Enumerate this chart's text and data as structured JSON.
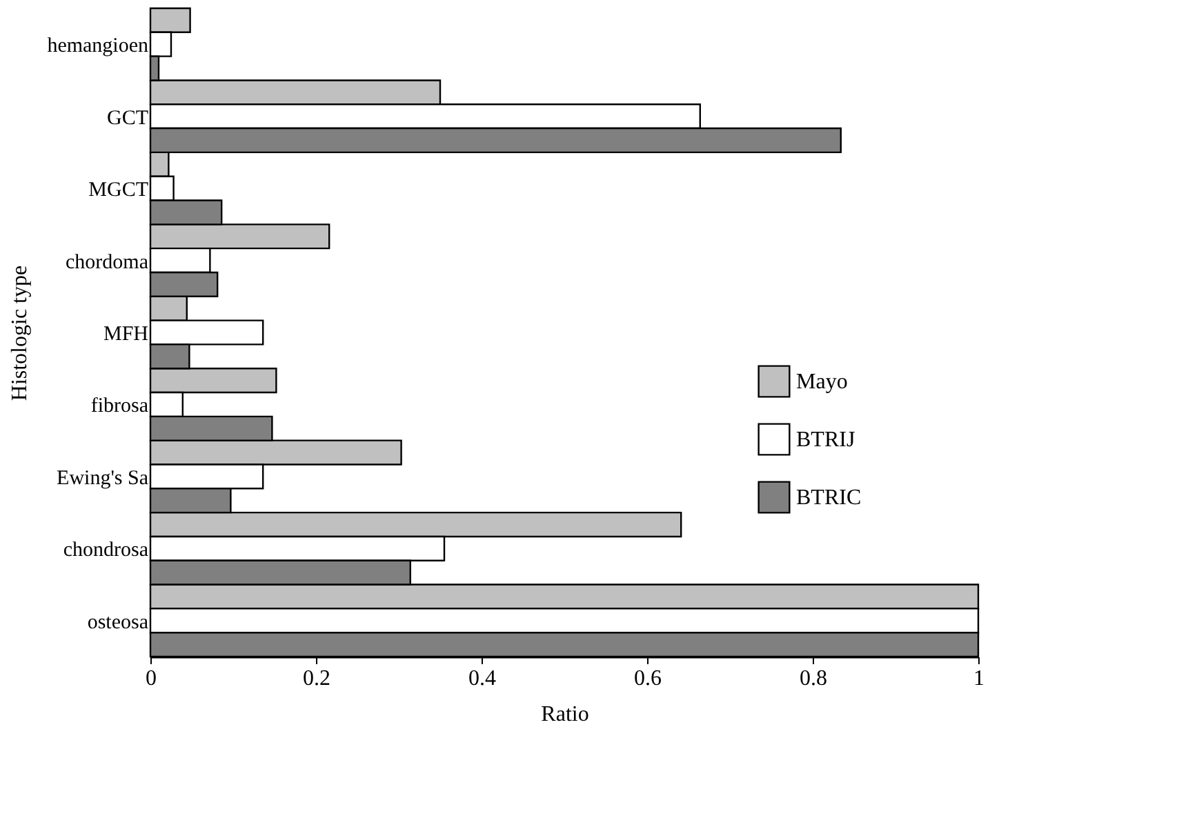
{
  "chart_data": {
    "type": "bar",
    "orientation": "horizontal",
    "xlabel": "Ratio",
    "ylabel": "Histologic type",
    "categories": [
      "hemangioen",
      "GCT",
      "MGCT",
      "chordoma",
      "MFH",
      "fibrosa",
      "Ewing's Sa",
      "chondrosa",
      "osteosa"
    ],
    "series": [
      {
        "name": "Mayo",
        "color": "#c0c0c0",
        "values": [
          0.048,
          0.35,
          0.022,
          0.216,
          0.044,
          0.152,
          0.303,
          0.641,
          1.0
        ]
      },
      {
        "name": "BTRIJ",
        "color": "#ffffff",
        "values": [
          0.025,
          0.664,
          0.028,
          0.072,
          0.136,
          0.039,
          0.136,
          0.355,
          1.0
        ]
      },
      {
        "name": "BTRIC",
        "color": "#808080",
        "values": [
          0.01,
          0.834,
          0.086,
          0.081,
          0.047,
          0.147,
          0.097,
          0.314,
          1.0
        ]
      }
    ],
    "xlim": [
      0,
      1
    ],
    "xticks": [
      0,
      0.2,
      0.4,
      0.6,
      0.8,
      1
    ],
    "grid": false,
    "legend": "right"
  }
}
